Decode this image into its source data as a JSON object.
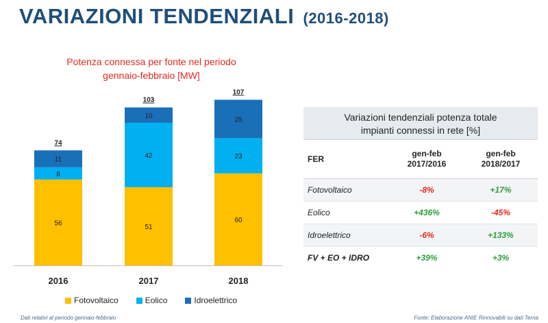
{
  "header": {
    "title": "VARIAZIONI TENDENZIALI",
    "years": "(2016-2018)"
  },
  "chart_data": {
    "type": "bar",
    "stacked": true,
    "title_line1": "Potenza connessa per fonte nel periodo",
    "title_line2": "gennaio-febbraio [MW]",
    "categories": [
      "2016",
      "2017",
      "2018"
    ],
    "series": [
      {
        "name": "Fotovoltaico",
        "values": [
          56,
          51,
          60
        ],
        "color": "#ffc000"
      },
      {
        "name": "Eolico",
        "values": [
          8,
          42,
          23
        ],
        "color": "#00b0f0"
      },
      {
        "name": "Idroelettrico",
        "values": [
          11,
          10,
          25
        ],
        "color": "#1a6fb9"
      }
    ],
    "totals": [
      "74",
      "103",
      "107"
    ],
    "ylim": [
      0,
      110
    ],
    "grid": false,
    "legend_position": "bottom"
  },
  "table": {
    "title_line1": "Variazioni tendenziali potenza totale",
    "title_line2": "impianti connessi in rete [%]",
    "col_fer": "FER",
    "col1_line1": "gen-feb",
    "col1_line2": "2017/2016",
    "col2_line1": "gen-feb",
    "col2_line2": "2018/2017",
    "rows": [
      {
        "label": "Fotovoltaico",
        "v1": "-8%",
        "v2": "+17%"
      },
      {
        "label": "Eolico",
        "v1": "+436%",
        "v2": "-45%"
      },
      {
        "label": "Idroelettrico",
        "v1": "-6%",
        "v2": "+133%"
      },
      {
        "label": "FV + EO + IDRO",
        "v1": "+39%",
        "v2": "+3%"
      }
    ]
  },
  "footer": {
    "left": "Dati relativi al periodo gennaio-febbraio",
    "right": "Fonte: Elaborazione ANIE Rinnovabili su dati Terna"
  },
  "colors": {
    "title_blue": "#1f4e79",
    "chart_title_red": "#e32a1e",
    "positive_green": "#2e9e3a",
    "negative_red": "#e32a1e"
  }
}
